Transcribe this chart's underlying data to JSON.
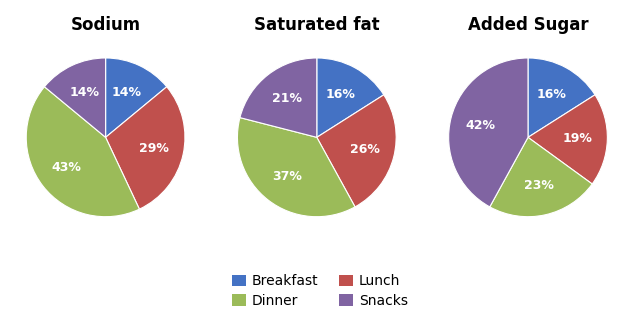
{
  "charts": [
    {
      "title": "Sodium",
      "values": [
        14,
        29,
        43,
        14
      ],
      "labels": [
        "14%",
        "29%",
        "43%",
        "14%"
      ],
      "start_angle": 90
    },
    {
      "title": "Saturated fat",
      "values": [
        16,
        26,
        37,
        21
      ],
      "labels": [
        "16%",
        "26%",
        "37%",
        "21%"
      ],
      "start_angle": 90
    },
    {
      "title": "Added Sugar",
      "values": [
        16,
        19,
        23,
        42
      ],
      "labels": [
        "16%",
        "19%",
        "23%",
        "42%"
      ],
      "start_angle": 90
    }
  ],
  "categories": [
    "Breakfast",
    "Lunch",
    "Dinner",
    "Snacks"
  ],
  "colors": [
    "#4472C4",
    "#C0504D",
    "#9BBB59",
    "#8064A2"
  ],
  "label_color": "white",
  "title_fontsize": 12,
  "label_fontsize": 9,
  "background_color": "#ffffff",
  "legend_order": [
    0,
    2,
    1,
    3
  ],
  "legend_labels": [
    "Breakfast",
    "Dinner",
    "Lunch",
    "Snacks"
  ]
}
